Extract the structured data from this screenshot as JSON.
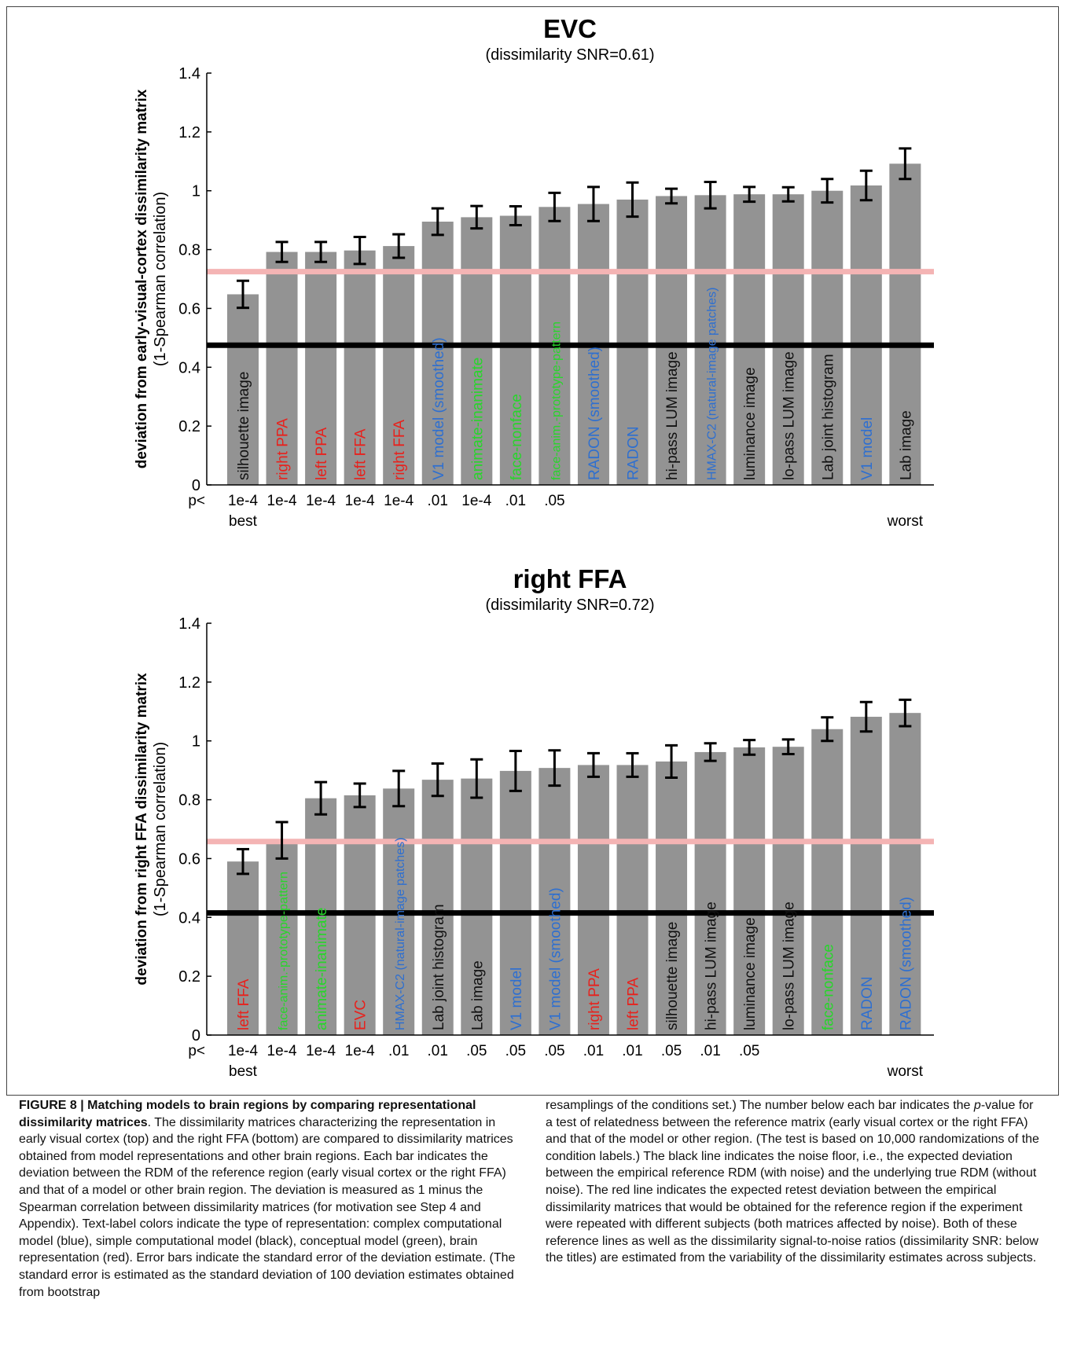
{
  "colors": {
    "bar": "#939393",
    "noise_floor": "#000000",
    "retest": "#f4b4b4",
    "blue": "#2e6fd0",
    "black": "#111111",
    "green": "#27d62a",
    "red": "#e8211c"
  },
  "chart_data": [
    {
      "type": "bar",
      "title": "EVC",
      "subtitle": "(dissimilarity SNR=0.61)",
      "ylabel_main": "deviation from early-visual-cortex dissimilarity matrix",
      "ylabel_sub": "(1-Spearman correlation)",
      "ylim": [
        0,
        1.4
      ],
      "yticks": [
        "0",
        "0.2",
        "0.4",
        "0.6",
        "0.8",
        "1",
        "1.2",
        "1.4"
      ],
      "noise_floor": 0.475,
      "retest_line": 0.725,
      "p_prefix": "p<",
      "best_label": "best",
      "worst_label": "worst",
      "bars": [
        {
          "label": "silhouette image",
          "type": "black",
          "value": 0.648,
          "err": 0.046,
          "p": "1e-4"
        },
        {
          "label": "right PPA",
          "type": "red",
          "value": 0.792,
          "err": 0.034,
          "p": "1e-4"
        },
        {
          "label": "left PPA",
          "type": "red",
          "value": 0.792,
          "err": 0.034,
          "p": "1e-4"
        },
        {
          "label": "left FFA",
          "type": "red",
          "value": 0.797,
          "err": 0.046,
          "p": "1e-4"
        },
        {
          "label": "right FFA",
          "type": "red",
          "value": 0.812,
          "err": 0.04,
          "p": "1e-4"
        },
        {
          "label": "V1 model (smoothed)",
          "type": "blue",
          "value": 0.895,
          "err": 0.045,
          "p": ".01"
        },
        {
          "label": "animate-inanimate",
          "type": "green",
          "value": 0.91,
          "err": 0.038,
          "p": "1e-4"
        },
        {
          "label": "face-nonface",
          "type": "green",
          "value": 0.915,
          "err": 0.032,
          "p": ".01"
        },
        {
          "label": "face-anim.-prototype-pattern",
          "type": "green",
          "value": 0.945,
          "err": 0.048,
          "p": ".05"
        },
        {
          "label": "RADON (smoothed)",
          "type": "blue",
          "value": 0.955,
          "err": 0.058,
          "p": ""
        },
        {
          "label": "RADON",
          "type": "blue",
          "value": 0.97,
          "err": 0.058,
          "p": ""
        },
        {
          "label": "hi-pass LUM image",
          "type": "black",
          "value": 0.982,
          "err": 0.025,
          "p": ""
        },
        {
          "label": "HMAX-C2 (natural-image patches)",
          "type": "blue",
          "value": 0.985,
          "err": 0.045,
          "p": ""
        },
        {
          "label": "luminance image",
          "type": "black",
          "value": 0.988,
          "err": 0.025,
          "p": ""
        },
        {
          "label": "lo-pass LUM image",
          "type": "black",
          "value": 0.988,
          "err": 0.024,
          "p": ""
        },
        {
          "label": "Lab joint histogram",
          "type": "black",
          "value": 1.0,
          "err": 0.04,
          "p": ""
        },
        {
          "label": "V1 model",
          "type": "blue",
          "value": 1.018,
          "err": 0.05,
          "p": ""
        },
        {
          "label": "Lab image",
          "type": "black",
          "value": 1.092,
          "err": 0.052,
          "p": ""
        }
      ]
    },
    {
      "type": "bar",
      "title": "right FFA",
      "subtitle": "(dissimilarity SNR=0.72)",
      "ylabel_main": "deviation from right FFA dissimilarity matrix",
      "ylabel_sub": "(1-Spearman correlation)",
      "ylim": [
        0,
        1.4
      ],
      "yticks": [
        "0",
        "0.2",
        "0.4",
        "0.6",
        "0.8",
        "1",
        "1.2",
        "1.4"
      ],
      "noise_floor": 0.415,
      "retest_line": 0.658,
      "p_prefix": "p<",
      "best_label": "best",
      "worst_label": "worst",
      "bars": [
        {
          "label": "left FFA",
          "type": "red",
          "value": 0.59,
          "err": 0.042,
          "p": "1e-4"
        },
        {
          "label": "face-anim.-prototype-pattern",
          "type": "green",
          "value": 0.662,
          "err": 0.062,
          "p": "1e-4"
        },
        {
          "label": "animate-inanimate",
          "type": "green",
          "value": 0.805,
          "err": 0.055,
          "p": "1e-4"
        },
        {
          "label": "EVC",
          "type": "red",
          "value": 0.815,
          "err": 0.04,
          "p": "1e-4"
        },
        {
          "label": "HMAX-C2 (natural-image patches)",
          "type": "blue",
          "value": 0.838,
          "err": 0.06,
          "p": ".01"
        },
        {
          "label": "Lab joint histogram",
          "type": "black",
          "value": 0.868,
          "err": 0.055,
          "p": ".01"
        },
        {
          "label": "Lab image",
          "type": "black",
          "value": 0.872,
          "err": 0.065,
          "p": ".05"
        },
        {
          "label": "V1 model",
          "type": "blue",
          "value": 0.898,
          "err": 0.068,
          "p": ".05"
        },
        {
          "label": "V1 model (smoothed)",
          "type": "blue",
          "value": 0.908,
          "err": 0.06,
          "p": ".05"
        },
        {
          "label": "right PPA",
          "type": "red",
          "value": 0.918,
          "err": 0.04,
          "p": ".01"
        },
        {
          "label": "left PPA",
          "type": "red",
          "value": 0.918,
          "err": 0.04,
          "p": ".01"
        },
        {
          "label": "silhouette image",
          "type": "black",
          "value": 0.93,
          "err": 0.055,
          "p": ".05"
        },
        {
          "label": "hi-pass LUM image",
          "type": "black",
          "value": 0.962,
          "err": 0.03,
          "p": ".01"
        },
        {
          "label": "luminance image",
          "type": "black",
          "value": 0.978,
          "err": 0.025,
          "p": ".05"
        },
        {
          "label": "lo-pass LUM image",
          "type": "black",
          "value": 0.98,
          "err": 0.025,
          "p": ""
        },
        {
          "label": "face-nonface",
          "type": "green",
          "value": 1.04,
          "err": 0.04,
          "p": ""
        },
        {
          "label": "RADON",
          "type": "blue",
          "value": 1.082,
          "err": 0.05,
          "p": ""
        },
        {
          "label": "RADON (smoothed)",
          "type": "blue",
          "value": 1.095,
          "err": 0.045,
          "p": ""
        }
      ]
    }
  ],
  "caption": {
    "heading": "FIGURE 8 | Matching models to brain regions by comparing representational dissimilarity matrices",
    "left_text": ". The dissimilarity matrices characterizing the representation in early visual cortex (top) and the right FFA (bottom) are compared to dissimilarity matrices obtained from model representations and other brain regions. Each bar indicates the deviation between the RDM of the reference region (early visual cortex or the right FFA) and that of a model or other brain region. The deviation is measured as 1 minus the Spearman correlation between dissimilarity matrices (for motivation see Step 4 and Appendix). Text-label colors indicate the type of representation: complex computational model (blue), simple computational model (black), conceptual model (green), brain representation (red). Error bars indicate the standard error of the deviation estimate. (The standard error is estimated as the standard deviation of 100 deviation estimates obtained from bootstrap",
    "right_text_a": "resamplings of the conditions set.) The number below each bar indicates the ",
    "right_text_p": "p",
    "right_text_b": "-value for a test of relatedness between the reference matrix (early visual cortex or the right FFA) and that of the model or other region. (The test is based on 10,000 randomizations of the condition labels.) The black line indicates the noise floor, i.e., the expected deviation between the empirical reference RDM (with noise) and the underlying true RDM (without noise). The red line indicates the expected retest deviation between the empirical dissimilarity matrices that would be obtained for the reference region if the experiment were repeated with different subjects (both matrices affected by noise). Both of these reference lines as well as the dissimilarity signal-to-noise ratios (dissimilarity SNR: below the titles) are estimated from the variability of the dissimilarity estimates across subjects."
  }
}
